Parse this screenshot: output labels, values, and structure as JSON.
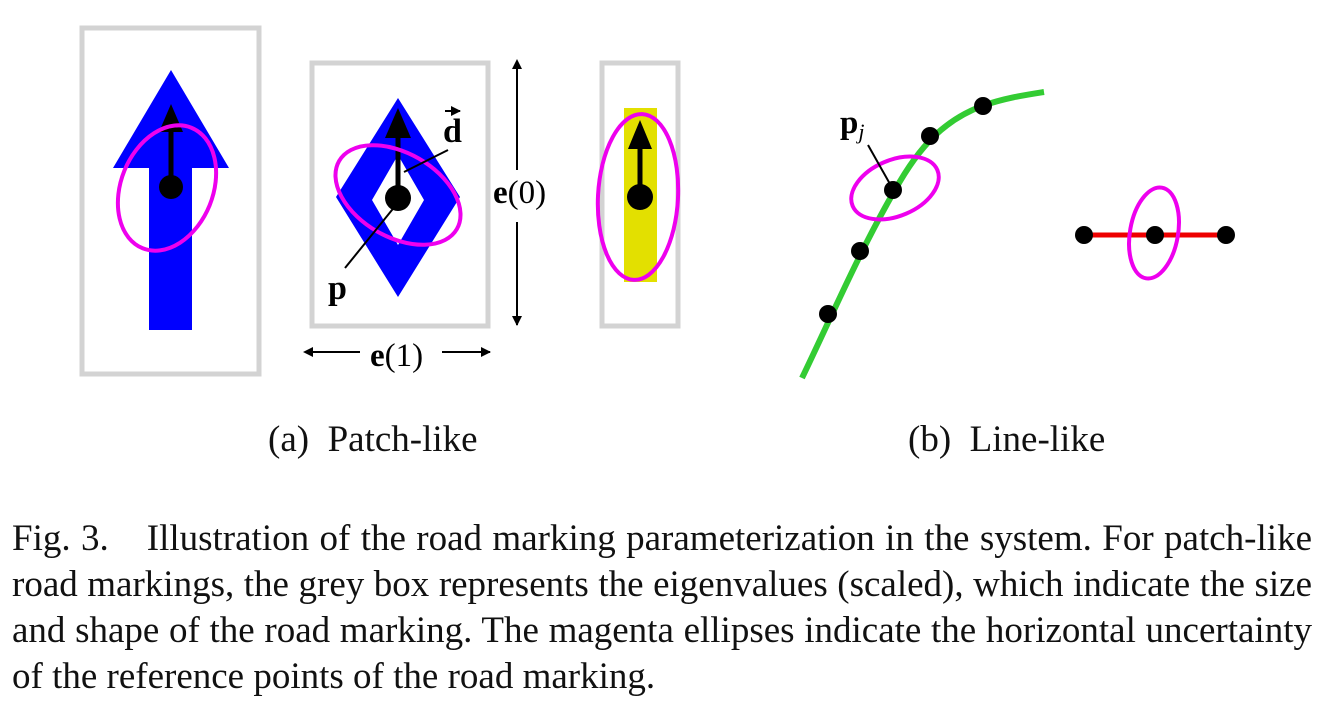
{
  "figure": {
    "labels": {
      "d": "d",
      "p": "p",
      "e0_base": "e",
      "e0_arg": "(0)",
      "e1_base": "e",
      "e1_arg": "(1)",
      "pj_base": "p",
      "pj_sub": "j"
    },
    "subcaptions": {
      "a": "(a)  Patch-like",
      "b": "(b)  Line-like"
    },
    "colors": {
      "patch_blue": "#0000ff",
      "patch_yellow": "#e3e000",
      "ellipse_magenta": "#ee00ee",
      "line_green": "#33cc33",
      "line_red": "#ee0000",
      "box_grey": "#d3d3d3",
      "point_black": "#000000"
    },
    "icons": [
      "up-arrow-marking",
      "diamond-marking",
      "dash-marking",
      "direction-arrow",
      "double-arrow"
    ]
  },
  "caption": {
    "label": "Fig. 3.",
    "text": "Illustration of the road marking parameterization in the system. For patch-like road markings, the grey box represents the eigenvalues (scaled), which indicate the size and shape of the road marking. The magenta ellipses indicate the horizontal uncertainty of the reference points of the road marking."
  }
}
